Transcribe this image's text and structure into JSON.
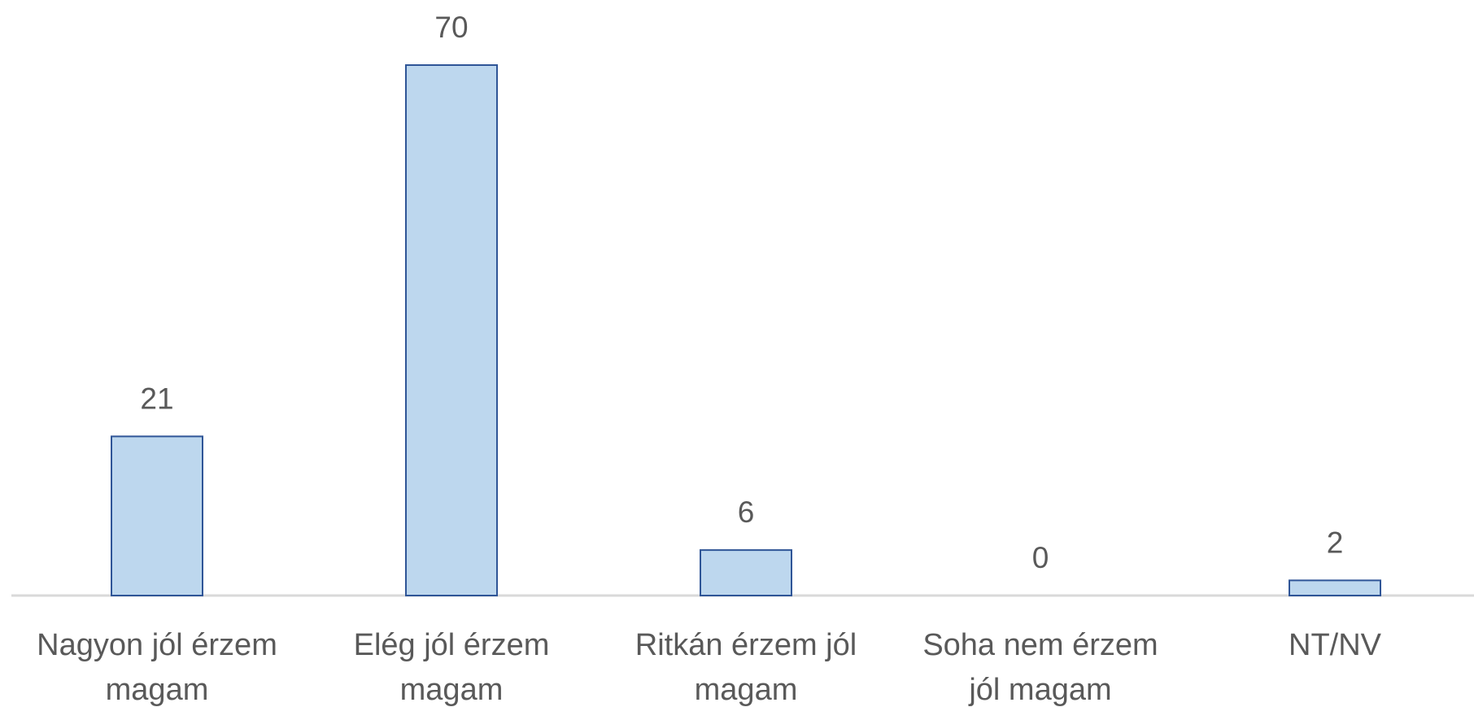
{
  "chart_data": {
    "type": "bar",
    "categories": [
      "Nagyon jól érzem\nmagam",
      "Elég jól érzem\nmagam",
      "Ritkán érzem jól\nmagam",
      "Soha nem érzem\njól magam",
      "NT/NV"
    ],
    "values": [
      21,
      70,
      6,
      0,
      2
    ],
    "color": "#bdd7ee",
    "edge_color": "#2f5597"
  }
}
